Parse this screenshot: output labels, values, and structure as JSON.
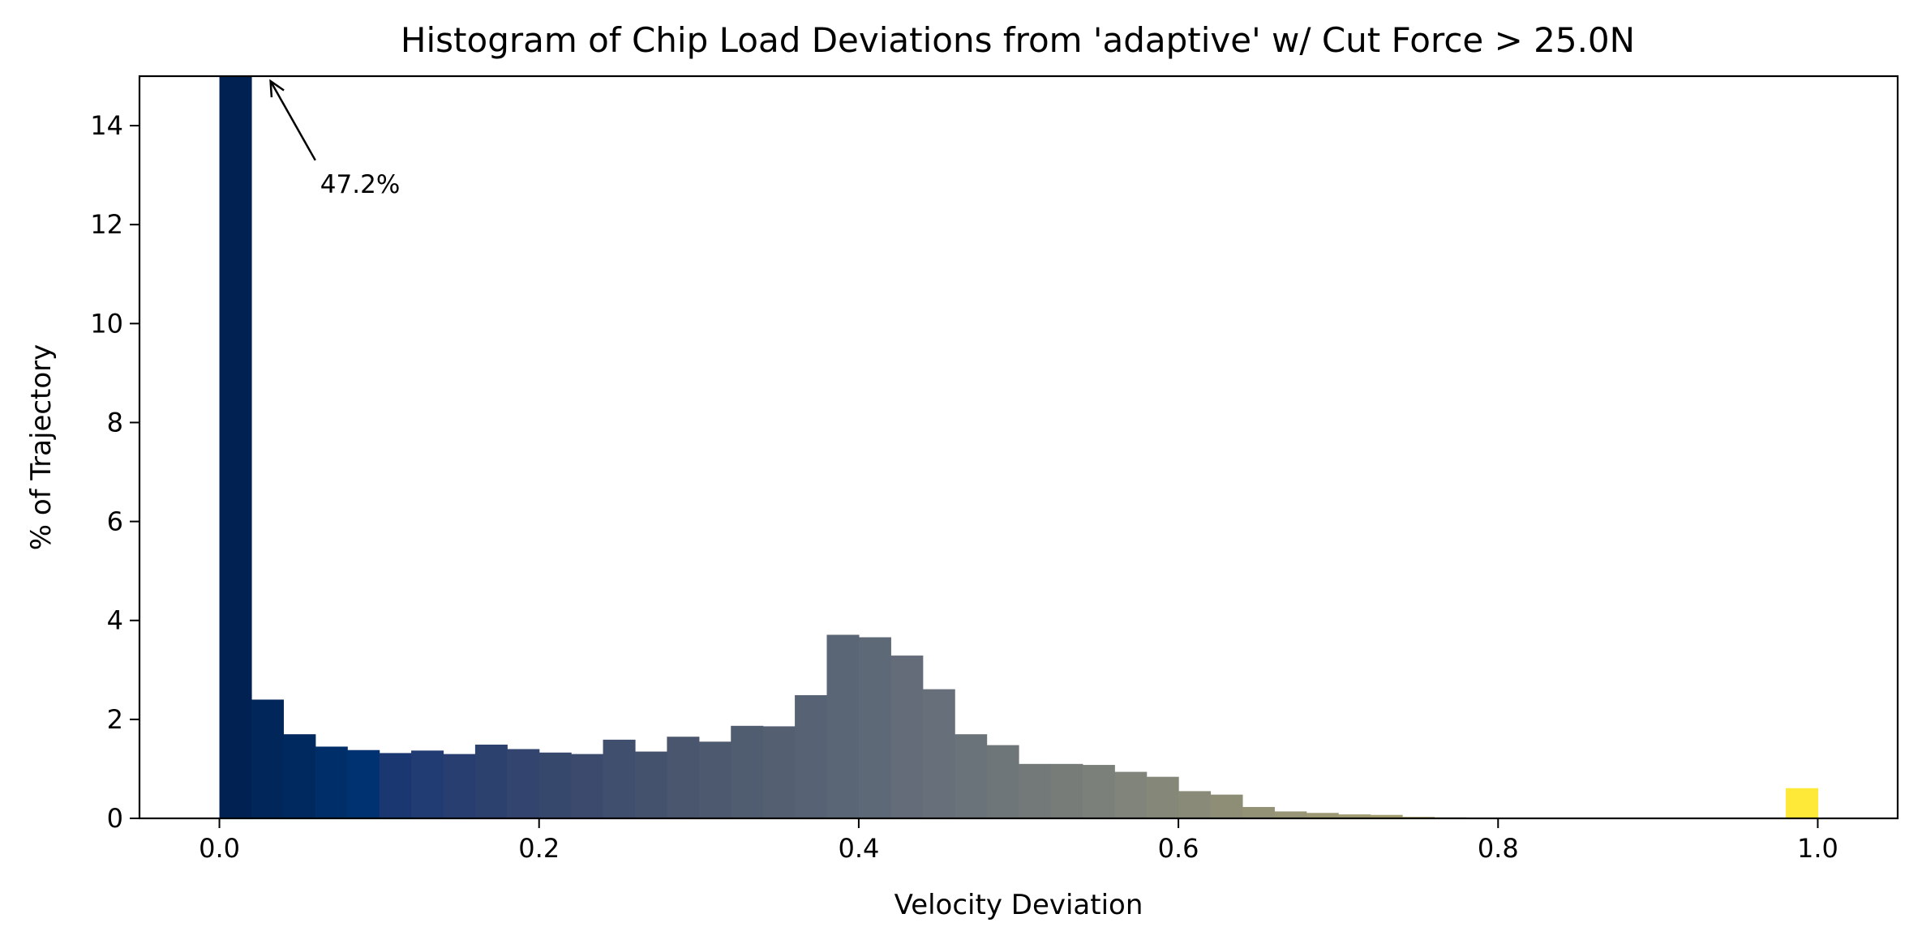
{
  "chart_data": {
    "type": "bar",
    "title": "Histogram of Chip Load Deviations from 'adaptive' w/ Cut Force > 25.0N",
    "xlabel": "Velocity Deviation",
    "ylabel": "% of Trajectory",
    "xlim": [
      -0.05,
      1.05
    ],
    "ylim": [
      0,
      15
    ],
    "bin_width": 0.02,
    "x_ticks": [
      0.0,
      0.2,
      0.4,
      0.6,
      0.8,
      1.0
    ],
    "x_tick_labels": [
      "0.0",
      "0.2",
      "0.4",
      "0.6",
      "0.8",
      "1.0"
    ],
    "y_ticks": [
      0,
      2,
      4,
      6,
      8,
      10,
      12,
      14
    ],
    "y_tick_labels": [
      "0",
      "2",
      "4",
      "6",
      "8",
      "10",
      "12",
      "14"
    ],
    "bin_starts": [
      0.0,
      0.02,
      0.04,
      0.06,
      0.08,
      0.1,
      0.12,
      0.14,
      0.16,
      0.18,
      0.2,
      0.22,
      0.24,
      0.26,
      0.28,
      0.3,
      0.32,
      0.34,
      0.36,
      0.38,
      0.4,
      0.42,
      0.44,
      0.46,
      0.48,
      0.5,
      0.52,
      0.54,
      0.56,
      0.58,
      0.6,
      0.62,
      0.64,
      0.66,
      0.68,
      0.7,
      0.72,
      0.74,
      0.76,
      0.78,
      0.8,
      0.82,
      0.84,
      0.86,
      0.88,
      0.9,
      0.92,
      0.94,
      0.96,
      0.98
    ],
    "values": [
      47.2,
      2.4,
      1.7,
      1.45,
      1.38,
      1.32,
      1.37,
      1.3,
      1.49,
      1.4,
      1.33,
      1.3,
      1.59,
      1.35,
      1.65,
      1.55,
      1.87,
      1.86,
      2.49,
      3.71,
      3.66,
      3.29,
      2.61,
      1.7,
      1.48,
      1.1,
      1.1,
      1.08,
      0.94,
      0.84,
      0.55,
      0.48,
      0.23,
      0.14,
      0.11,
      0.08,
      0.07,
      0.03,
      0.02,
      0.0,
      0.0,
      0.0,
      0.0,
      0.0,
      0.0,
      0.0,
      0.0,
      0.0,
      0.0,
      0.61
    ],
    "bar_colors": [
      "#002152",
      "#00265a",
      "#00295f",
      "#002e68",
      "#003170",
      "#1a3772",
      "#213b73",
      "#283e71",
      "#2d416f",
      "#33456e",
      "#37486d",
      "#3c4b6d",
      "#404f6d",
      "#45526d",
      "#49566e",
      "#4c596f",
      "#505c70",
      "#545f71",
      "#576374",
      "#5a6675",
      "#5e6977",
      "#636c78",
      "#67707a",
      "#6a7379",
      "#6e7679",
      "#737979",
      "#777c79",
      "#7b807a",
      "#80847a",
      "#858778",
      "#8a8a79",
      "#8e8e77",
      "#939277",
      "#989576",
      "#9d9874",
      "#a19c72",
      "#a59f70",
      "#aaa36e",
      "#aea76d",
      "#b3aa69",
      "#b8ae66",
      "#bcb264",
      "#c1b661",
      "#c5ba5e",
      "#cabd5b",
      "#cfc157",
      "#d4c553",
      "#dac84f",
      "#e3d145",
      "#fee838"
    ],
    "annotation": {
      "text": "47.2%",
      "arrow_from": [
        0.06,
        13.3
      ],
      "arrow_to": [
        0.032,
        14.9
      ]
    },
    "grid": false,
    "legend": "none"
  }
}
